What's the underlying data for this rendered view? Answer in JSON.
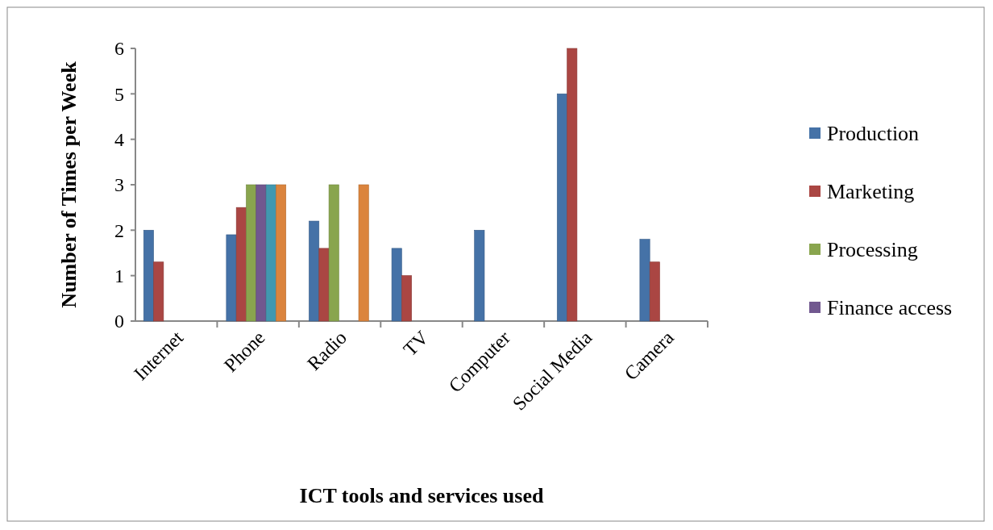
{
  "chart_data": {
    "type": "bar",
    "xlabel": "ICT tools and services used",
    "ylabel": "Number of Times per Week",
    "categories": [
      "Internet",
      "Phone",
      "Radio",
      "TV",
      "Computer",
      "Social Media",
      "Camera"
    ],
    "series": [
      {
        "name": "Production",
        "color": "#4572a7",
        "values": [
          2,
          1.9,
          2.2,
          1.6,
          2,
          5,
          1.8
        ]
      },
      {
        "name": "Marketing",
        "color": "#aa4643",
        "values": [
          1.3,
          2.5,
          1.6,
          1,
          null,
          6,
          1.3
        ]
      },
      {
        "name": "Processing",
        "color": "#89a54e",
        "values": [
          null,
          3,
          3,
          null,
          null,
          null,
          null
        ]
      },
      {
        "name": "Finance access",
        "color": "#71588f",
        "values": [
          null,
          3,
          null,
          null,
          null,
          null,
          null
        ]
      },
      {
        "color": "#4198af",
        "values": [
          null,
          3,
          null,
          null,
          null,
          null,
          null
        ]
      },
      {
        "color": "#db843d",
        "values": [
          null,
          3,
          3,
          null,
          null,
          null,
          null
        ]
      }
    ],
    "ylim": [
      0,
      6
    ],
    "yticks": [
      0,
      1,
      2,
      3,
      4,
      5,
      6
    ],
    "grid": false,
    "legend": "right"
  }
}
